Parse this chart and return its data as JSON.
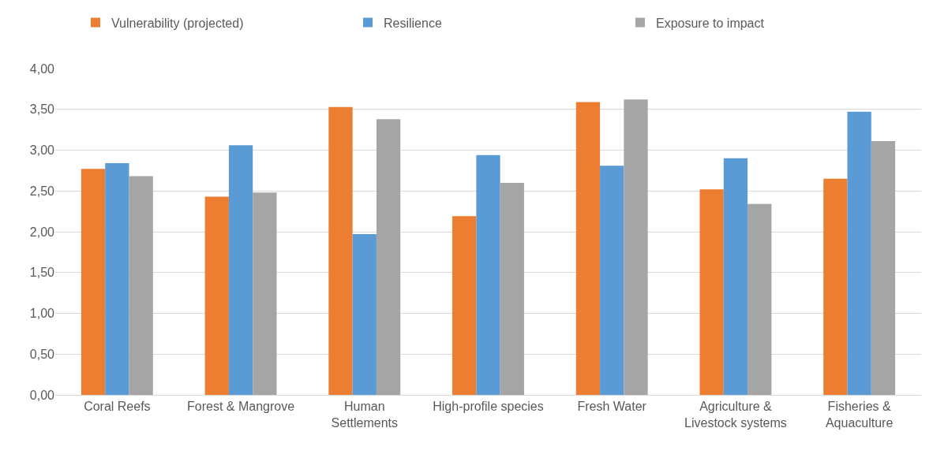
{
  "chart_data": {
    "type": "bar",
    "categories": [
      "Coral Reefs",
      "Forest & Mangrove",
      "Human\nSettlements",
      "High-profile species",
      "Fresh Water",
      "Agriculture &\nLivestock systems",
      "Fisheries &\nAquaculture"
    ],
    "series": [
      {
        "name": "Vulnerability (projected)",
        "color": "#ed7d31",
        "values": [
          2.77,
          2.43,
          3.53,
          2.19,
          3.59,
          2.52,
          2.65
        ]
      },
      {
        "name": "Resilience",
        "color": "#5b9bd5",
        "values": [
          2.84,
          3.06,
          1.97,
          2.94,
          2.81,
          2.9,
          3.47
        ]
      },
      {
        "name": "Exposure to impact",
        "color": "#a5a5a5",
        "values": [
          2.68,
          2.48,
          3.38,
          2.6,
          3.62,
          2.34,
          3.11
        ]
      }
    ],
    "ylim": [
      0,
      4
    ],
    "yticks": [
      {
        "value": 0,
        "label": "0,00"
      },
      {
        "value": 0.5,
        "label": "0,50"
      },
      {
        "value": 1,
        "label": "1,00"
      },
      {
        "value": 1.5,
        "label": "1,50"
      },
      {
        "value": 2,
        "label": "2,00"
      },
      {
        "value": 2.5,
        "label": "2,50"
      },
      {
        "value": 3,
        "label": "3,00"
      },
      {
        "value": 3.5,
        "label": "3,50"
      },
      {
        "value": 4,
        "label": "4,00"
      }
    ],
    "grid": "y",
    "legend": "top"
  }
}
